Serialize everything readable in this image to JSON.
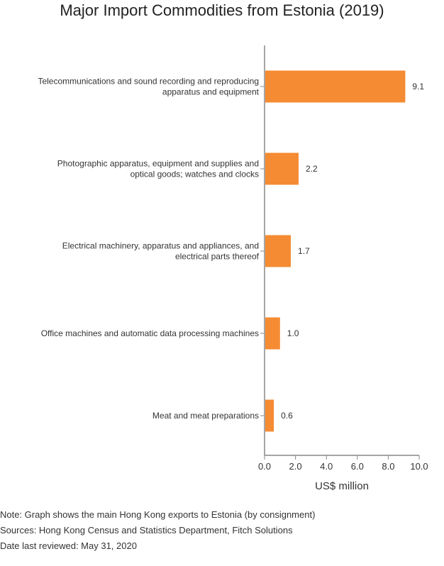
{
  "title": "Major Import Commodities from Estonia (2019)",
  "chart_data": {
    "type": "bar",
    "orientation": "horizontal",
    "title": "Major Import Commodities from Estonia (2019)",
    "xlabel": "US$ million",
    "ylabel": "",
    "xlim": [
      0,
      10
    ],
    "xticks": [
      "0.0",
      "2.0",
      "4.0",
      "6.0",
      "8.0",
      "10.0"
    ],
    "grid": false,
    "categories": [
      [
        "Telecommunications and sound recording and reproducing",
        "apparatus and equipment"
      ],
      [
        "Photographic apparatus, equipment and supplies and",
        "optical goods; watches and clocks"
      ],
      [
        "Electrical machinery, apparatus and appliances, and",
        "electrical parts thereof"
      ],
      [
        "Office machines and automatic data processing machines"
      ],
      [
        "Meat and meat preparations"
      ]
    ],
    "values": [
      9.1,
      2.2,
      1.7,
      1.0,
      0.6
    ],
    "value_labels": [
      "9.1",
      "2.2",
      "1.7",
      "1.0",
      "0.6"
    ],
    "bar_color": "#f58b32",
    "axis_color": "#888888"
  },
  "notes": {
    "note": "Note: Graph shows the main Hong Kong exports to Estonia (by consignment)",
    "sources": "Sources: Hong Kong Census and Statistics Department, Fitch Solutions",
    "reviewed": "Date last reviewed: May 31, 2020"
  }
}
